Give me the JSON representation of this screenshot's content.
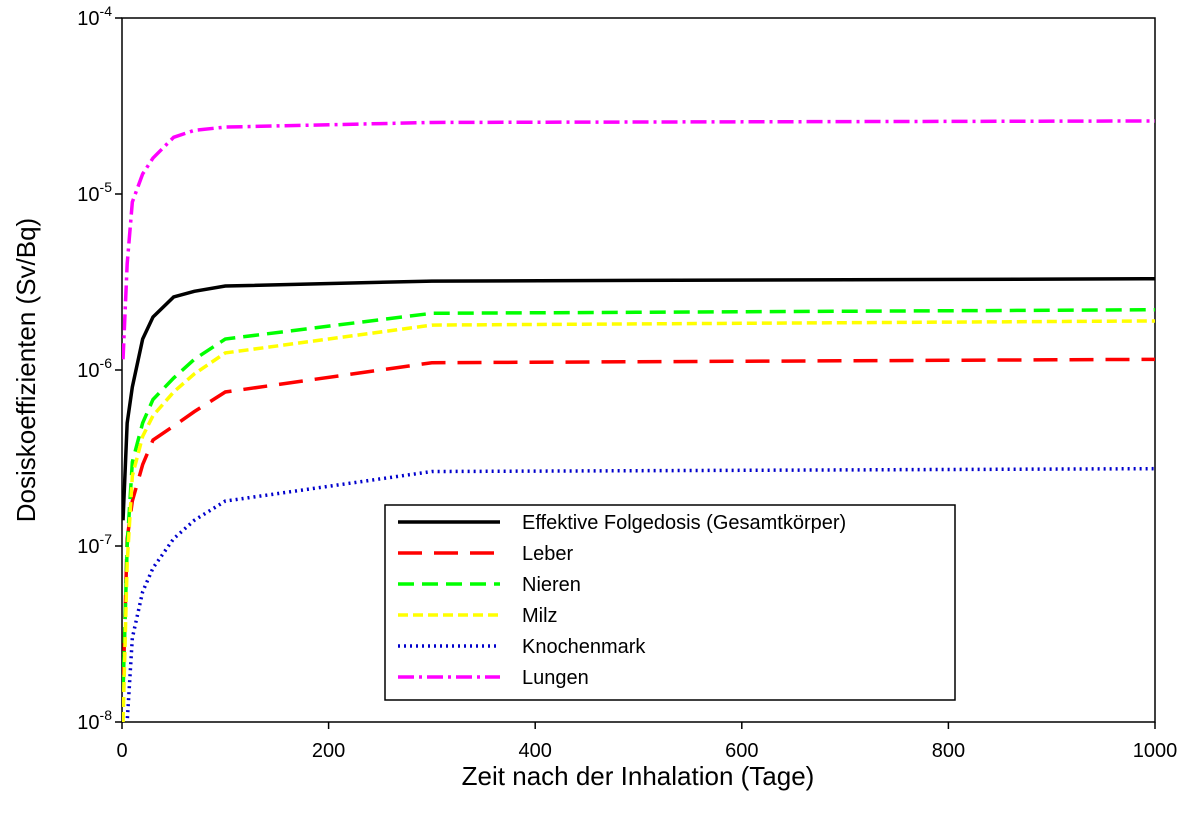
{
  "chart_data": {
    "type": "line",
    "xlabel": "Zeit nach der Inhalation (Tage)",
    "ylabel": "Dosiskoeffizienten (Sv/Bq)",
    "yscale": "log",
    "xlim": [
      0,
      1000
    ],
    "xticks": [
      0,
      200,
      400,
      600,
      800,
      1000
    ],
    "ylim": [
      1e-08,
      0.0001
    ],
    "yticks": [
      {
        "value": 1e-08,
        "label": "10-8"
      },
      {
        "value": 1e-07,
        "label": "10-7"
      },
      {
        "value": 1e-06,
        "label": "10-6"
      },
      {
        "value": 1e-05,
        "label": "10-5"
      },
      {
        "value": 0.0001,
        "label": "10-4"
      }
    ],
    "x": [
      1,
      5,
      10,
      20,
      30,
      50,
      70,
      100,
      300,
      1000
    ],
    "series": [
      {
        "name": "Effektive Folgedosis (Gesamtkörper)",
        "color": "#000000",
        "dash": "none",
        "values": [
          1.4e-07,
          5e-07,
          8e-07,
          1.5e-06,
          2e-06,
          2.6e-06,
          2.8e-06,
          3e-06,
          3.2e-06,
          3.3e-06
        ]
      },
      {
        "name": "Leber",
        "color": "#ff0000",
        "dash": "24,12",
        "values": [
          1.5e-08,
          1.1e-07,
          1.8e-07,
          2.9e-07,
          4e-07,
          4.8e-07,
          5.8e-07,
          7.5e-07,
          1.1e-06,
          1.15e-06
        ]
      },
      {
        "name": "Nieren",
        "color": "#00ff00",
        "dash": "16,8",
        "values": [
          1.5e-08,
          1e-07,
          3e-07,
          5e-07,
          6.8e-07,
          9e-07,
          1.15e-06,
          1.5e-06,
          2.1e-06,
          2.2e-06
        ]
      },
      {
        "name": "Milz",
        "color": "#ffff00",
        "dash": "10,5",
        "values": [
          1e-08,
          8e-08,
          2.5e-07,
          4.2e-07,
          5.5e-07,
          7.5e-07,
          9.5e-07,
          1.25e-06,
          1.8e-06,
          1.9e-06
        ]
      },
      {
        "name": "Knochenmark",
        "color": "#0000cc",
        "dash": "2,4",
        "values": [
          3e-09,
          1e-08,
          3e-08,
          5.5e-08,
          7.5e-08,
          1.1e-07,
          1.4e-07,
          1.8e-07,
          2.65e-07,
          2.75e-07
        ]
      },
      {
        "name": "Lungen",
        "color": "#ff00ff",
        "dash": "16,5,3,5",
        "values": [
          1.15e-06,
          4e-06,
          9e-06,
          1.3e-05,
          1.6e-05,
          2.1e-05,
          2.3e-05,
          2.4e-05,
          2.55e-05,
          2.6e-05
        ]
      }
    ]
  }
}
